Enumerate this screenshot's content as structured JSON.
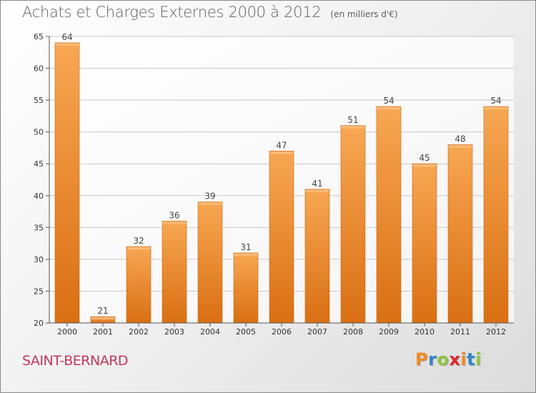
{
  "header": {
    "title": "Achats et Charges Externes 2000 à 2012",
    "unit": "(en milliers d'€)"
  },
  "footer": {
    "commune": "SAINT-BERNARD",
    "logo": "Proxiti"
  },
  "logo_letters": [
    {
      "char": "P",
      "color": "#f18a1f"
    },
    {
      "char": "r",
      "color": "#2e86c8"
    },
    {
      "char": "o",
      "color": "#8cc63f"
    },
    {
      "char": "x",
      "color": "#e2262d"
    },
    {
      "char": "i",
      "color": "#f18a1f"
    },
    {
      "char": "t",
      "color": "#2e86c8"
    },
    {
      "char": "i",
      "color": "#8cc63f"
    }
  ],
  "colors": {
    "bar_top": "#f8a752",
    "bar_bottom": "#d96f13",
    "axis": "#555555",
    "grid": "#c8c8c8",
    "commune": "#c0395a"
  },
  "chart_data": {
    "type": "bar",
    "title": "Achats et Charges Externes 2000 à 2012",
    "subtitle": "(en milliers d'€)",
    "categories": [
      "2000",
      "2001",
      "2002",
      "2003",
      "2004",
      "2005",
      "2006",
      "2007",
      "2008",
      "2009",
      "2010",
      "2011",
      "2012"
    ],
    "values": [
      64,
      21,
      32,
      36,
      39,
      31,
      47,
      41,
      51,
      54,
      45,
      48,
      54
    ],
    "ylim": [
      20,
      65
    ],
    "yticks": [
      20,
      25,
      30,
      35,
      40,
      45,
      50,
      55,
      60,
      65
    ],
    "grid": true,
    "data_labels": true
  }
}
